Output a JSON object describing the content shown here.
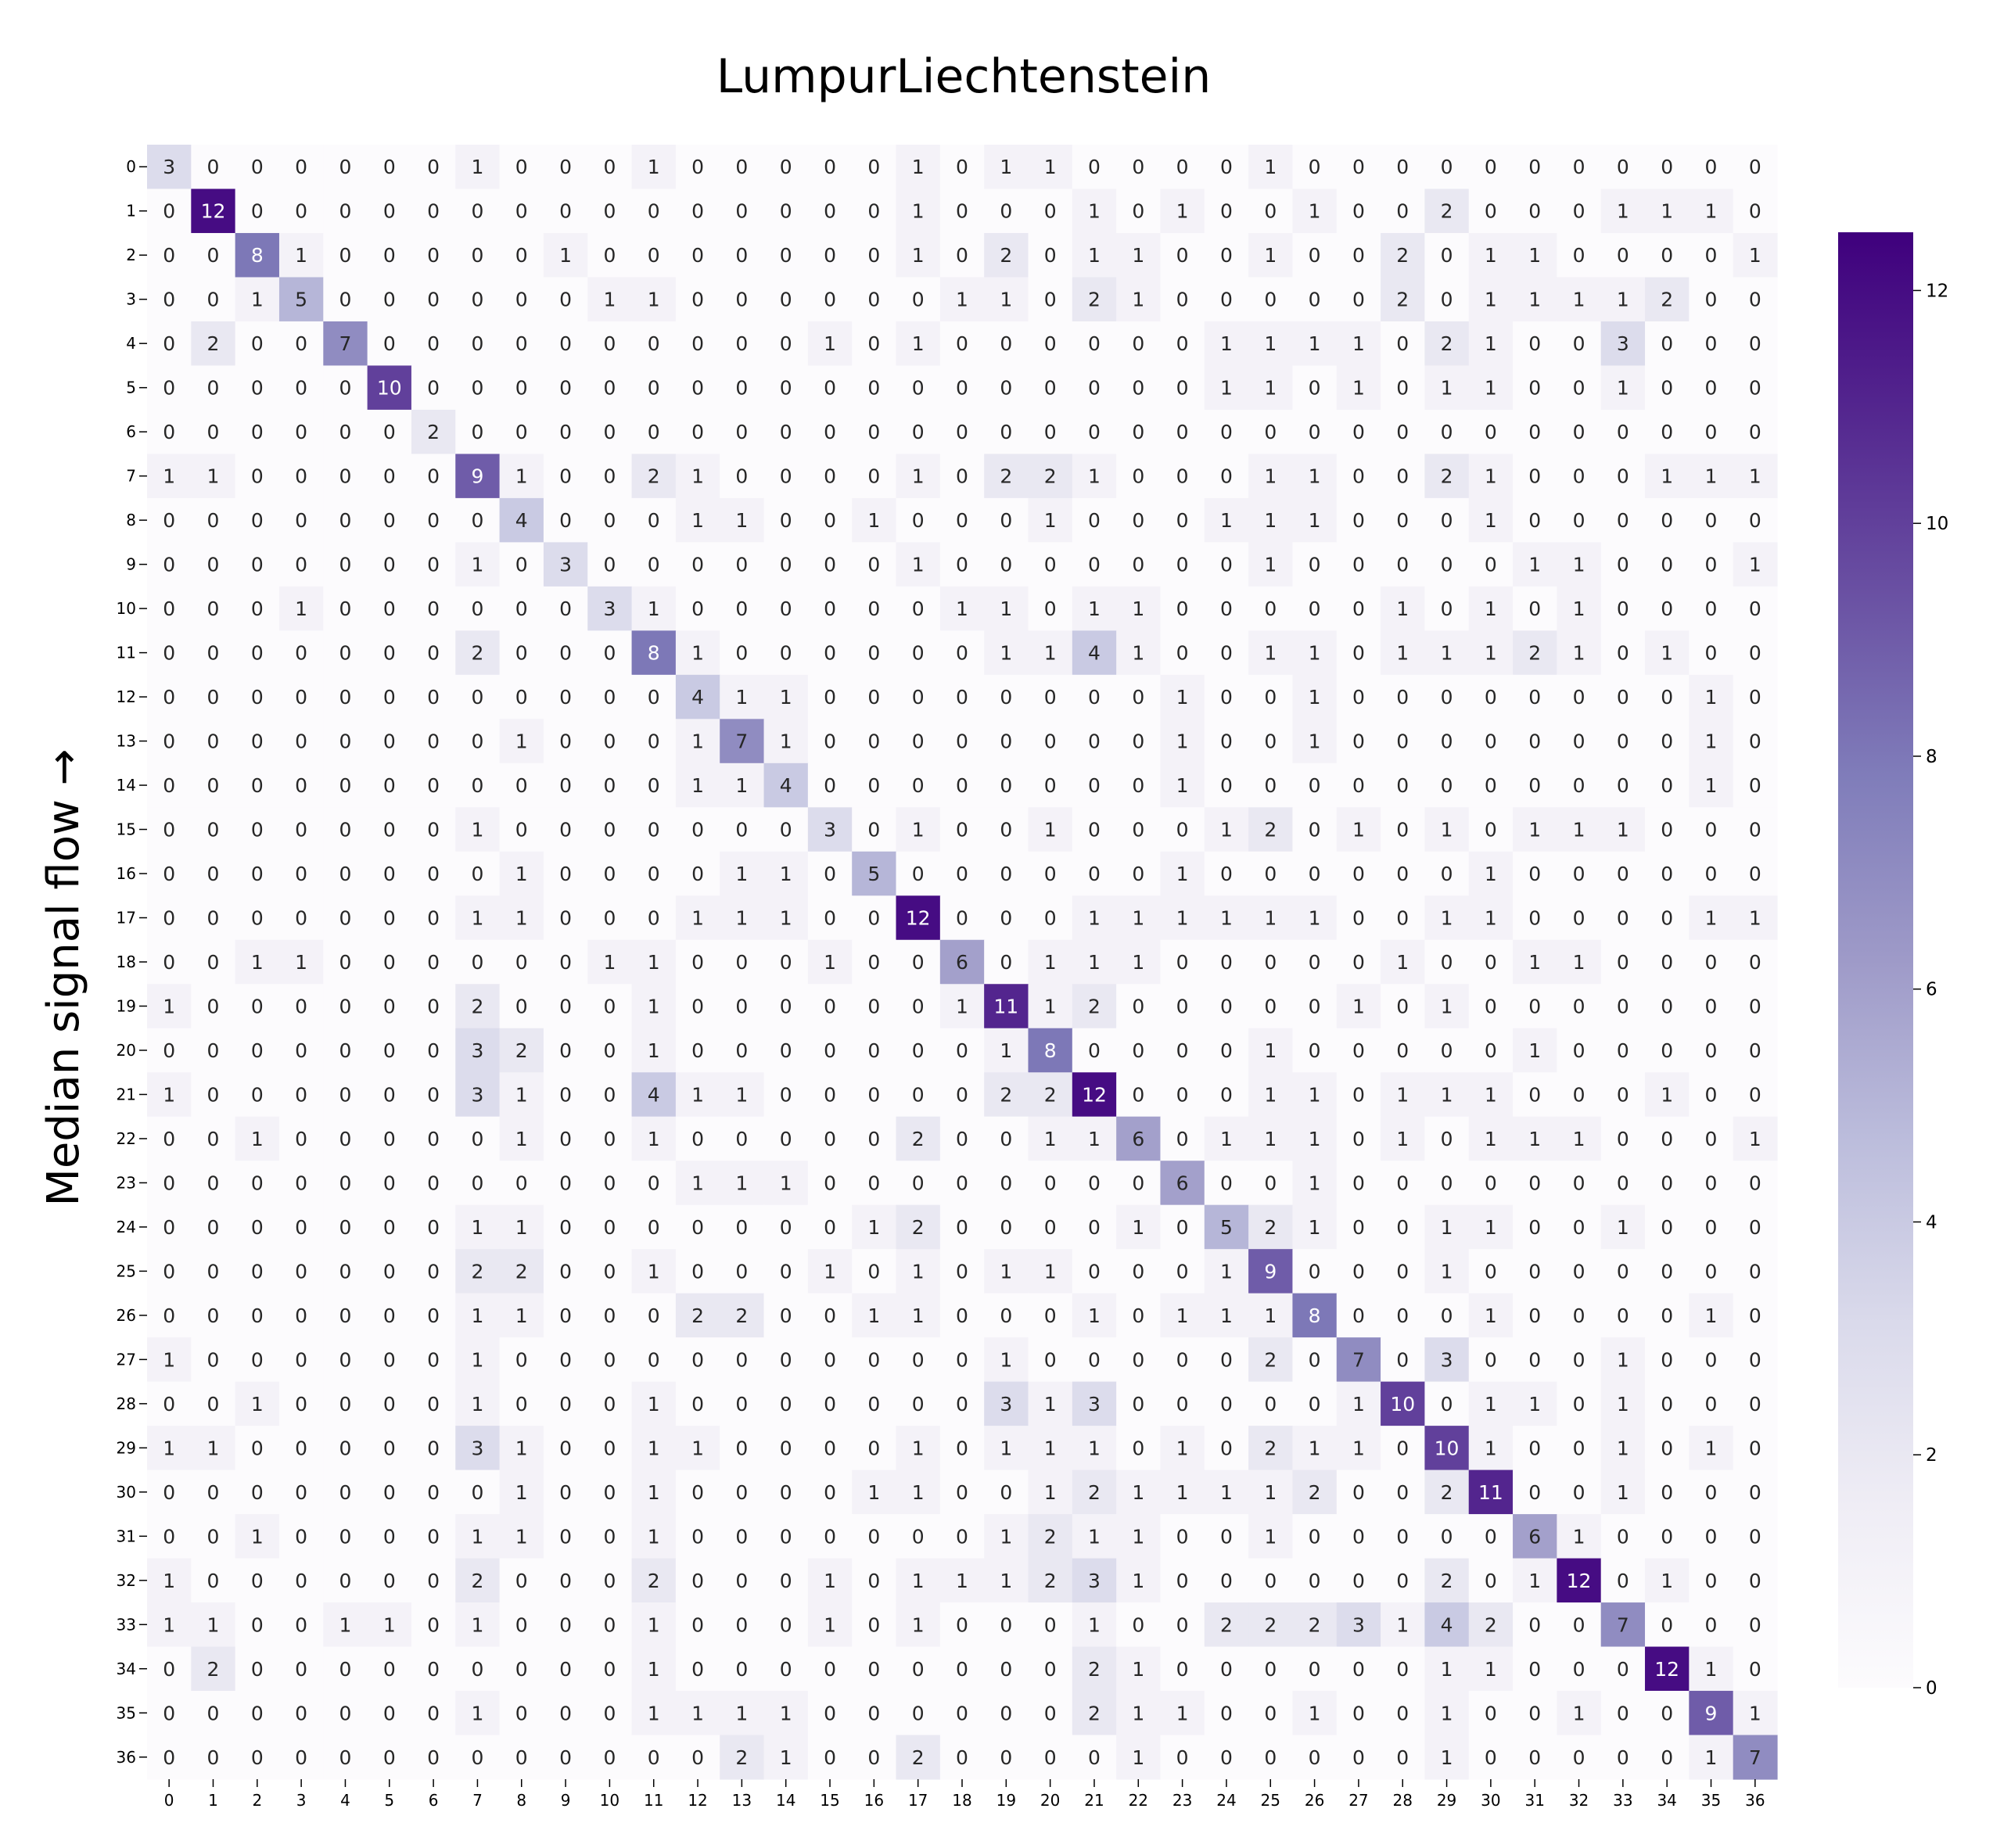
{
  "chart_data": {
    "type": "heatmap",
    "title": "LumpurLiechtenstein",
    "xlabel": "",
    "ylabel": "Median signal flow →",
    "x_labels": [
      "0",
      "1",
      "2",
      "3",
      "4",
      "5",
      "6",
      "7",
      "8",
      "9",
      "10",
      "11",
      "12",
      "13",
      "14",
      "15",
      "16",
      "17",
      "18",
      "19",
      "20",
      "21",
      "22",
      "23",
      "24",
      "25",
      "26",
      "27",
      "28",
      "29",
      "30",
      "31",
      "32",
      "33",
      "34",
      "35",
      "36"
    ],
    "y_labels": [
      "0",
      "1",
      "2",
      "3",
      "4",
      "5",
      "6",
      "7",
      "8",
      "9",
      "10",
      "11",
      "12",
      "13",
      "14",
      "15",
      "16",
      "17",
      "18",
      "19",
      "20",
      "21",
      "22",
      "23",
      "24",
      "25",
      "26",
      "27",
      "28",
      "29",
      "30",
      "31",
      "32",
      "33",
      "34",
      "35",
      "36"
    ],
    "colormap": "Purples",
    "color_min": "#fcfbfd",
    "color_max": "#3f007d",
    "colorbar": {
      "vmin": 0,
      "vmax": 12.5,
      "ticks": [
        "0",
        "2",
        "4",
        "6",
        "8",
        "10",
        "12"
      ]
    },
    "values": [
      [
        3,
        0,
        0,
        0,
        0,
        0,
        0,
        1,
        0,
        0,
        0,
        1,
        0,
        0,
        0,
        0,
        0,
        1,
        0,
        1,
        1,
        0,
        0,
        0,
        0,
        1,
        0,
        0,
        0,
        0,
        0,
        0,
        0,
        0,
        0,
        0,
        0
      ],
      [
        0,
        12,
        0,
        0,
        0,
        0,
        0,
        0,
        0,
        0,
        0,
        0,
        0,
        0,
        0,
        0,
        0,
        1,
        0,
        0,
        0,
        1,
        0,
        1,
        0,
        0,
        1,
        0,
        0,
        2,
        0,
        0,
        0,
        1,
        1,
        1,
        0
      ],
      [
        0,
        0,
        8,
        1,
        0,
        0,
        0,
        0,
        0,
        1,
        0,
        0,
        0,
        0,
        0,
        0,
        0,
        1,
        0,
        2,
        0,
        1,
        1,
        0,
        0,
        1,
        0,
        0,
        2,
        0,
        1,
        1,
        0,
        0,
        0,
        0,
        1
      ],
      [
        0,
        0,
        1,
        5,
        0,
        0,
        0,
        0,
        0,
        0,
        1,
        1,
        0,
        0,
        0,
        0,
        0,
        0,
        1,
        1,
        0,
        2,
        1,
        0,
        0,
        0,
        0,
        0,
        2,
        0,
        1,
        1,
        1,
        1,
        2,
        0,
        0
      ],
      [
        0,
        2,
        0,
        0,
        7,
        0,
        0,
        0,
        0,
        0,
        0,
        0,
        0,
        0,
        0,
        1,
        0,
        1,
        0,
        0,
        0,
        0,
        0,
        0,
        1,
        1,
        1,
        1,
        0,
        2,
        1,
        0,
        0,
        3,
        0,
        0,
        0
      ],
      [
        0,
        0,
        0,
        0,
        0,
        10,
        0,
        0,
        0,
        0,
        0,
        0,
        0,
        0,
        0,
        0,
        0,
        0,
        0,
        0,
        0,
        0,
        0,
        0,
        1,
        1,
        0,
        1,
        0,
        1,
        1,
        0,
        0,
        1,
        0,
        0,
        0
      ],
      [
        0,
        0,
        0,
        0,
        0,
        0,
        2,
        0,
        0,
        0,
        0,
        0,
        0,
        0,
        0,
        0,
        0,
        0,
        0,
        0,
        0,
        0,
        0,
        0,
        0,
        0,
        0,
        0,
        0,
        0,
        0,
        0,
        0,
        0,
        0,
        0,
        0
      ],
      [
        1,
        1,
        0,
        0,
        0,
        0,
        0,
        9,
        1,
        0,
        0,
        2,
        1,
        0,
        0,
        0,
        0,
        1,
        0,
        2,
        2,
        1,
        0,
        0,
        0,
        1,
        1,
        0,
        0,
        2,
        1,
        0,
        0,
        0,
        1,
        1,
        1
      ],
      [
        0,
        0,
        0,
        0,
        0,
        0,
        0,
        0,
        4,
        0,
        0,
        0,
        1,
        1,
        0,
        0,
        1,
        0,
        0,
        0,
        1,
        0,
        0,
        0,
        1,
        1,
        1,
        0,
        0,
        0,
        1,
        0,
        0,
        0,
        0,
        0,
        0
      ],
      [
        0,
        0,
        0,
        0,
        0,
        0,
        0,
        1,
        0,
        3,
        0,
        0,
        0,
        0,
        0,
        0,
        0,
        1,
        0,
        0,
        0,
        0,
        0,
        0,
        0,
        1,
        0,
        0,
        0,
        0,
        0,
        1,
        1,
        0,
        0,
        0,
        1
      ],
      [
        0,
        0,
        0,
        1,
        0,
        0,
        0,
        0,
        0,
        0,
        3,
        1,
        0,
        0,
        0,
        0,
        0,
        0,
        1,
        1,
        0,
        1,
        1,
        0,
        0,
        0,
        0,
        0,
        1,
        0,
        1,
        0,
        1,
        0,
        0,
        0,
        0
      ],
      [
        0,
        0,
        0,
        0,
        0,
        0,
        0,
        2,
        0,
        0,
        0,
        8,
        1,
        0,
        0,
        0,
        0,
        0,
        0,
        1,
        1,
        4,
        1,
        0,
        0,
        1,
        1,
        0,
        1,
        1,
        1,
        2,
        1,
        0,
        1,
        0,
        0
      ],
      [
        0,
        0,
        0,
        0,
        0,
        0,
        0,
        0,
        0,
        0,
        0,
        0,
        4,
        1,
        1,
        0,
        0,
        0,
        0,
        0,
        0,
        0,
        0,
        1,
        0,
        0,
        1,
        0,
        0,
        0,
        0,
        0,
        0,
        0,
        0,
        1,
        0
      ],
      [
        0,
        0,
        0,
        0,
        0,
        0,
        0,
        0,
        1,
        0,
        0,
        0,
        1,
        7,
        1,
        0,
        0,
        0,
        0,
        0,
        0,
        0,
        0,
        1,
        0,
        0,
        1,
        0,
        0,
        0,
        0,
        0,
        0,
        0,
        0,
        1,
        0
      ],
      [
        0,
        0,
        0,
        0,
        0,
        0,
        0,
        0,
        0,
        0,
        0,
        0,
        1,
        1,
        4,
        0,
        0,
        0,
        0,
        0,
        0,
        0,
        0,
        1,
        0,
        0,
        0,
        0,
        0,
        0,
        0,
        0,
        0,
        0,
        0,
        1,
        0
      ],
      [
        0,
        0,
        0,
        0,
        0,
        0,
        0,
        1,
        0,
        0,
        0,
        0,
        0,
        0,
        0,
        3,
        0,
        1,
        0,
        0,
        1,
        0,
        0,
        0,
        1,
        2,
        0,
        1,
        0,
        1,
        0,
        1,
        1,
        1,
        0,
        0,
        0
      ],
      [
        0,
        0,
        0,
        0,
        0,
        0,
        0,
        0,
        1,
        0,
        0,
        0,
        0,
        1,
        1,
        0,
        5,
        0,
        0,
        0,
        0,
        0,
        0,
        1,
        0,
        0,
        0,
        0,
        0,
        0,
        1,
        0,
        0,
        0,
        0,
        0,
        0
      ],
      [
        0,
        0,
        0,
        0,
        0,
        0,
        0,
        1,
        1,
        0,
        0,
        0,
        1,
        1,
        1,
        0,
        0,
        12,
        0,
        0,
        0,
        1,
        1,
        1,
        1,
        1,
        1,
        0,
        0,
        1,
        1,
        0,
        0,
        0,
        0,
        1,
        1
      ],
      [
        0,
        0,
        1,
        1,
        0,
        0,
        0,
        0,
        0,
        0,
        1,
        1,
        0,
        0,
        0,
        1,
        0,
        0,
        6,
        0,
        1,
        1,
        1,
        0,
        0,
        0,
        0,
        0,
        1,
        0,
        0,
        1,
        1,
        0,
        0,
        0,
        0
      ],
      [
        1,
        0,
        0,
        0,
        0,
        0,
        0,
        2,
        0,
        0,
        0,
        1,
        0,
        0,
        0,
        0,
        0,
        0,
        1,
        11,
        1,
        2,
        0,
        0,
        0,
        0,
        0,
        1,
        0,
        1,
        0,
        0,
        0,
        0,
        0,
        0,
        0
      ],
      [
        0,
        0,
        0,
        0,
        0,
        0,
        0,
        3,
        2,
        0,
        0,
        1,
        0,
        0,
        0,
        0,
        0,
        0,
        0,
        1,
        8,
        0,
        0,
        0,
        0,
        1,
        0,
        0,
        0,
        0,
        0,
        1,
        0,
        0,
        0,
        0,
        0
      ],
      [
        1,
        0,
        0,
        0,
        0,
        0,
        0,
        3,
        1,
        0,
        0,
        4,
        1,
        1,
        0,
        0,
        0,
        0,
        0,
        2,
        2,
        12,
        0,
        0,
        0,
        1,
        1,
        0,
        1,
        1,
        1,
        0,
        0,
        0,
        1,
        0,
        0
      ],
      [
        0,
        0,
        1,
        0,
        0,
        0,
        0,
        0,
        1,
        0,
        0,
        1,
        0,
        0,
        0,
        0,
        0,
        2,
        0,
        0,
        1,
        1,
        6,
        0,
        1,
        1,
        1,
        0,
        1,
        0,
        1,
        1,
        1,
        0,
        0,
        0,
        1
      ],
      [
        0,
        0,
        0,
        0,
        0,
        0,
        0,
        0,
        0,
        0,
        0,
        0,
        1,
        1,
        1,
        0,
        0,
        0,
        0,
        0,
        0,
        0,
        0,
        6,
        0,
        0,
        1,
        0,
        0,
        0,
        0,
        0,
        0,
        0,
        0,
        0,
        0
      ],
      [
        0,
        0,
        0,
        0,
        0,
        0,
        0,
        1,
        1,
        0,
        0,
        0,
        0,
        0,
        0,
        0,
        1,
        2,
        0,
        0,
        0,
        0,
        1,
        0,
        5,
        2,
        1,
        0,
        0,
        1,
        1,
        0,
        0,
        1,
        0,
        0,
        0
      ],
      [
        0,
        0,
        0,
        0,
        0,
        0,
        0,
        2,
        2,
        0,
        0,
        1,
        0,
        0,
        0,
        1,
        0,
        1,
        0,
        1,
        1,
        0,
        0,
        0,
        1,
        9,
        0,
        0,
        0,
        1,
        0,
        0,
        0,
        0,
        0,
        0,
        0
      ],
      [
        0,
        0,
        0,
        0,
        0,
        0,
        0,
        1,
        1,
        0,
        0,
        0,
        2,
        2,
        0,
        0,
        1,
        1,
        0,
        0,
        0,
        1,
        0,
        1,
        1,
        1,
        8,
        0,
        0,
        0,
        1,
        0,
        0,
        0,
        0,
        1,
        0
      ],
      [
        1,
        0,
        0,
        0,
        0,
        0,
        0,
        1,
        0,
        0,
        0,
        0,
        0,
        0,
        0,
        0,
        0,
        0,
        0,
        1,
        0,
        0,
        0,
        0,
        0,
        2,
        0,
        7,
        0,
        3,
        0,
        0,
        0,
        1,
        0,
        0,
        0
      ],
      [
        0,
        0,
        1,
        0,
        0,
        0,
        0,
        1,
        0,
        0,
        0,
        1,
        0,
        0,
        0,
        0,
        0,
        0,
        0,
        3,
        1,
        3,
        0,
        0,
        0,
        0,
        0,
        1,
        10,
        0,
        1,
        1,
        0,
        1,
        0,
        0,
        0
      ],
      [
        1,
        1,
        0,
        0,
        0,
        0,
        0,
        3,
        1,
        0,
        0,
        1,
        1,
        0,
        0,
        0,
        0,
        1,
        0,
        1,
        1,
        1,
        0,
        1,
        0,
        2,
        1,
        1,
        0,
        10,
        1,
        0,
        0,
        1,
        0,
        1,
        0
      ],
      [
        0,
        0,
        0,
        0,
        0,
        0,
        0,
        0,
        1,
        0,
        0,
        1,
        0,
        0,
        0,
        0,
        1,
        1,
        0,
        0,
        1,
        2,
        1,
        1,
        1,
        1,
        2,
        0,
        0,
        2,
        11,
        0,
        0,
        1,
        0,
        0,
        0
      ],
      [
        0,
        0,
        1,
        0,
        0,
        0,
        0,
        1,
        1,
        0,
        0,
        1,
        0,
        0,
        0,
        0,
        0,
        0,
        0,
        1,
        2,
        1,
        1,
        0,
        0,
        1,
        0,
        0,
        0,
        0,
        0,
        6,
        1,
        0,
        0,
        0,
        0
      ],
      [
        1,
        0,
        0,
        0,
        0,
        0,
        0,
        2,
        0,
        0,
        0,
        2,
        0,
        0,
        0,
        1,
        0,
        1,
        1,
        1,
        2,
        3,
        1,
        0,
        0,
        0,
        0,
        0,
        0,
        2,
        0,
        1,
        12,
        0,
        1,
        0,
        0
      ],
      [
        1,
        1,
        0,
        0,
        1,
        1,
        0,
        1,
        0,
        0,
        0,
        1,
        0,
        0,
        0,
        1,
        0,
        1,
        0,
        0,
        0,
        1,
        0,
        0,
        2,
        2,
        2,
        3,
        1,
        4,
        2,
        0,
        0,
        7,
        0,
        0,
        0
      ],
      [
        0,
        2,
        0,
        0,
        0,
        0,
        0,
        0,
        0,
        0,
        0,
        1,
        0,
        0,
        0,
        0,
        0,
        0,
        0,
        0,
        0,
        2,
        1,
        0,
        0,
        0,
        0,
        0,
        0,
        1,
        1,
        0,
        0,
        0,
        12,
        1,
        0
      ],
      [
        0,
        0,
        0,
        0,
        0,
        0,
        0,
        1,
        0,
        0,
        0,
        1,
        1,
        1,
        1,
        0,
        0,
        0,
        0,
        0,
        0,
        2,
        1,
        1,
        0,
        0,
        1,
        0,
        0,
        1,
        0,
        0,
        1,
        0,
        0,
        9,
        1
      ],
      [
        0,
        0,
        0,
        0,
        0,
        0,
        0,
        0,
        0,
        0,
        0,
        0,
        0,
        2,
        1,
        0,
        0,
        2,
        0,
        0,
        0,
        0,
        1,
        0,
        0,
        0,
        0,
        0,
        0,
        1,
        0,
        0,
        0,
        0,
        0,
        1,
        7
      ]
    ]
  }
}
